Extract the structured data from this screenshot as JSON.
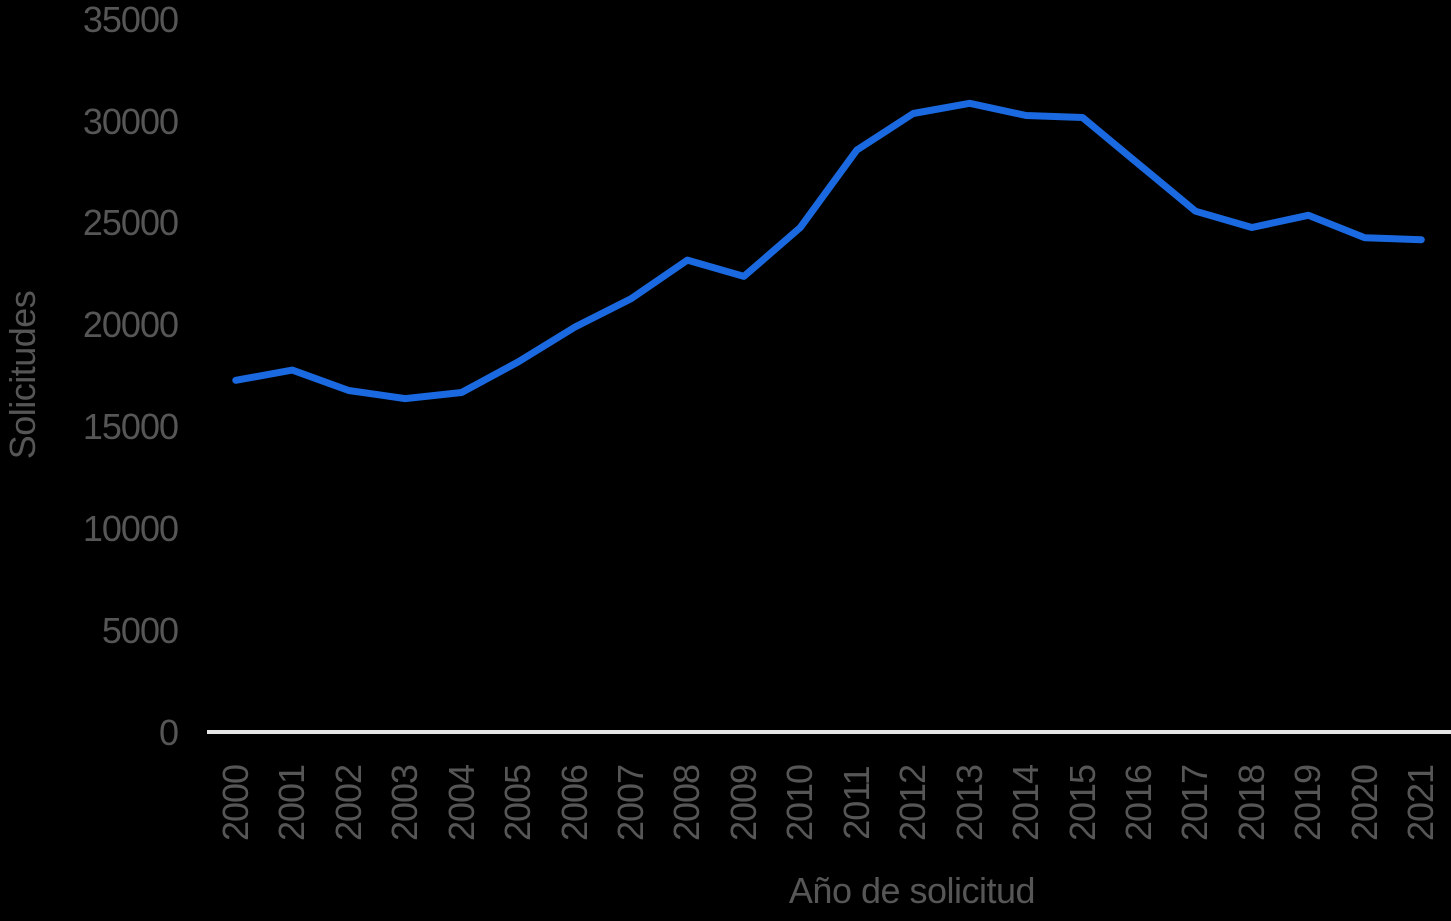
{
  "chart_data": {
    "type": "line",
    "title": "",
    "xlabel": "Año de solicitud",
    "ylabel": "Solicitudes",
    "categories": [
      "2000",
      "2001",
      "2002",
      "2003",
      "2004",
      "2005",
      "2006",
      "2007",
      "2008",
      "2009",
      "2010",
      "2011",
      "2012",
      "2013",
      "2014",
      "2015",
      "2016",
      "2017",
      "2018",
      "2019",
      "2020",
      "2021"
    ],
    "series": [
      {
        "name": "Solicitudes",
        "values": [
          17300,
          17800,
          16800,
          16400,
          16700,
          18200,
          19900,
          21300,
          23200,
          22400,
          24800,
          28600,
          30400,
          30900,
          30300,
          30200,
          27900,
          25600,
          24800,
          25400,
          24300,
          24200
        ]
      }
    ],
    "ylim": [
      0,
      35000
    ],
    "ytick_step": 5000,
    "yticks": [
      "0",
      "5000",
      "10000",
      "15000",
      "20000",
      "25000",
      "30000",
      "35000"
    ],
    "grid": "off",
    "legend": "none",
    "colors": {
      "line": "#1b69e0",
      "text": "#565656",
      "axis_line": "#e6e6e6",
      "background": "#000000"
    }
  }
}
